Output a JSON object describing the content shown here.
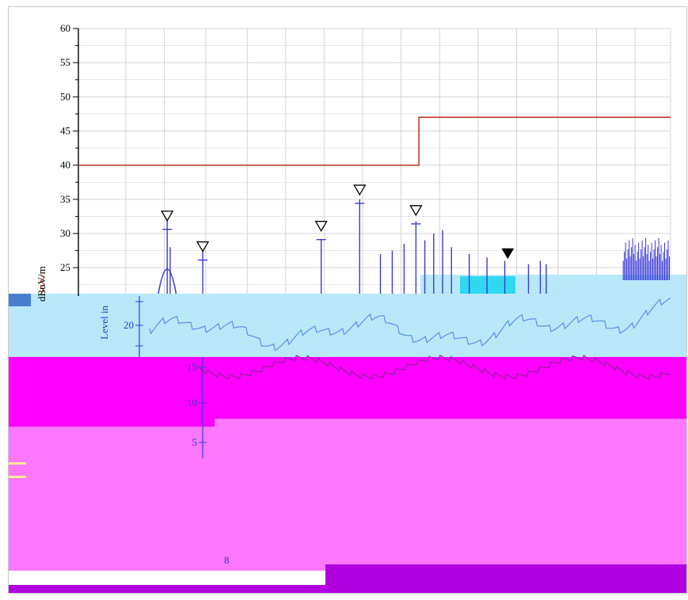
{
  "chart_data": {
    "type": "line",
    "title": "",
    "xlabel": "",
    "ylabel": "dBuV/m",
    "ylim": [
      0,
      60
    ],
    "yticks": [
      5,
      10,
      15,
      20,
      25,
      30,
      35,
      40,
      45,
      50,
      55,
      60
    ],
    "grid": true,
    "y_axis_label_fragment": "Level in",
    "bottom_label_fragment": "8",
    "limit_line": {
      "color": "#c0392b",
      "points": [
        [
          0,
          40
        ],
        [
          0.575,
          40
        ],
        [
          0.575,
          47
        ],
        [
          1,
          47
        ]
      ]
    },
    "markers": {
      "color": "#2b2bd0",
      "open": [
        {
          "x": 0.15,
          "y": 32
        },
        {
          "x": 0.21,
          "y": 27.5
        },
        {
          "x": 0.41,
          "y": 30.5
        },
        {
          "x": 0.475,
          "y": 35.8
        },
        {
          "x": 0.57,
          "y": 32.8
        }
      ],
      "filled": [
        {
          "x": 0.725,
          "y": 26.5
        }
      ]
    },
    "colors": {
      "band_cyan": "#b8e8f8",
      "band_magenta": "#ff00ff",
      "band_pink": "#ff77ff",
      "band_purple": "#b000e0",
      "trace": "#3a3ad8",
      "trace_light": "#5a8ee8",
      "grid": "#d4d4d4",
      "limit": "#c0392b"
    }
  }
}
